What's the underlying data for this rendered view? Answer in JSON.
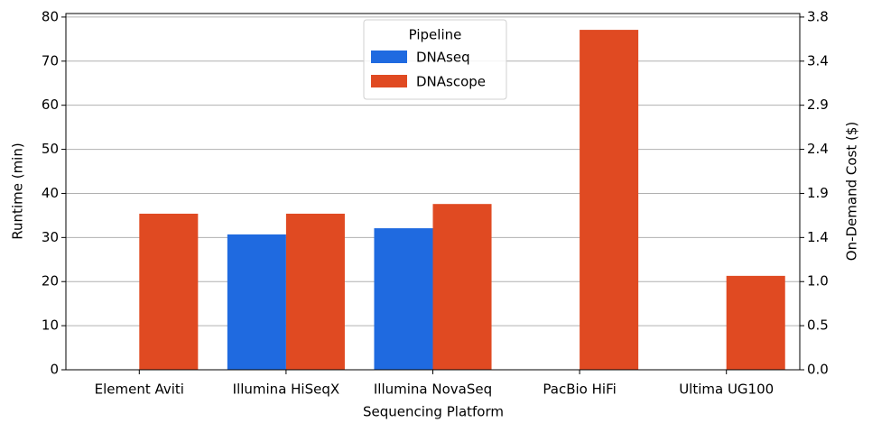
{
  "chart_data": {
    "type": "bar",
    "xlabel": "Sequencing Platform",
    "ylabel": "Runtime (min)",
    "y2label": "On-Demand Cost ($)",
    "categories": [
      "Element Aviti",
      "Illumina HiSeqX",
      "Illumina NovaSeq",
      "PacBio HiFi",
      "Ultima UG100"
    ],
    "series": [
      {
        "name": "DNAseq",
        "color": "#1f6ae0",
        "values": [
          null,
          30.7,
          32.1,
          null,
          null
        ]
      },
      {
        "name": "DNAscope",
        "color": "#e04a22",
        "values": [
          35.4,
          35.4,
          37.6,
          77.1,
          21.3
        ]
      }
    ],
    "legend_title": "Pipeline",
    "legend_position": "upper center",
    "ylim": [
      0,
      80.8
    ],
    "yticks": [
      0,
      10,
      20,
      30,
      40,
      50,
      60,
      70,
      80
    ],
    "y2lim": [
      0,
      3.8784
    ],
    "y2ticks": [
      {
        "value": 0,
        "label": "0.0"
      },
      {
        "value": 0.48,
        "label": "0.5"
      },
      {
        "value": 0.96,
        "label": "1.0"
      },
      {
        "value": 1.44,
        "label": "1.4"
      },
      {
        "value": 1.92,
        "label": "1.9"
      },
      {
        "value": 2.4,
        "label": "2.4"
      },
      {
        "value": 2.88,
        "label": "2.9"
      },
      {
        "value": 3.36,
        "label": "3.4"
      },
      {
        "value": 3.84,
        "label": "3.8"
      }
    ],
    "grid": true
  }
}
